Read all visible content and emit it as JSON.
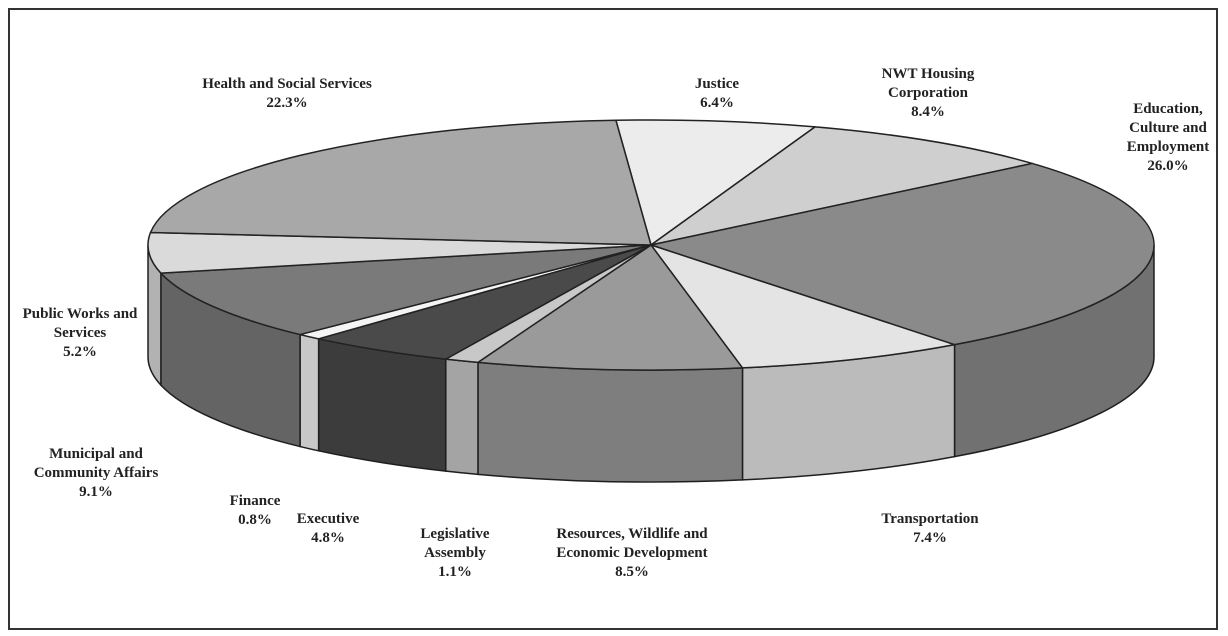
{
  "chart_data": {
    "type": "pie",
    "categories": [
      "Justice",
      "NWT Housing Corporation",
      "Education, Culture and Employment",
      "Transportation",
      "Resources, Wildlife and Economic Development",
      "Legislative Assembly",
      "Executive",
      "Finance",
      "Municipal and Community Affairs",
      "Public Works and Services",
      "Health and Social Services"
    ],
    "values": [
      6.4,
      8.4,
      26.0,
      7.4,
      8.5,
      1.1,
      4.8,
      0.8,
      9.1,
      5.2,
      22.3
    ],
    "value_labels": [
      "6.4%",
      "8.4%",
      "26.0%",
      "7.4%",
      "8.5%",
      "1.1%",
      "4.8%",
      "0.8%",
      "9.1%",
      "5.2%",
      "22.3%"
    ],
    "colors": [
      "#ececec",
      "#cfcfcf",
      "#8a8a8a",
      "#e4e4e4",
      "#9a9a9a",
      "#c8c8c8",
      "#4a4a4a",
      "#f4f4f4",
      "#7a7a7a",
      "#dadada",
      "#a8a8a8"
    ]
  }
}
